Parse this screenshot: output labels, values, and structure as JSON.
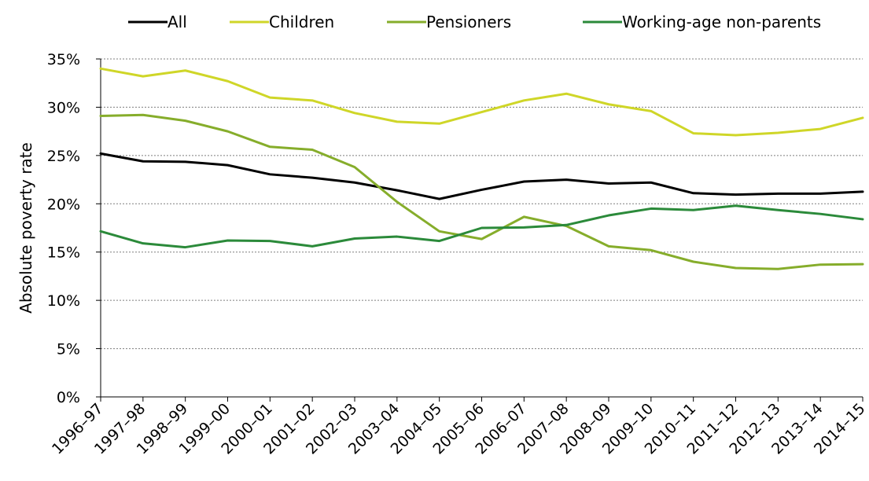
{
  "chart_data": {
    "type": "line",
    "title": "",
    "xlabel": "",
    "ylabel": "Absolute poverty rate",
    "ylim": [
      0,
      35
    ],
    "y_ticks": [
      "0%",
      "5%",
      "10%",
      "15%",
      "20%",
      "25%",
      "30%",
      "35%"
    ],
    "y_tick_values": [
      0,
      5,
      10,
      15,
      20,
      25,
      30,
      35
    ],
    "grid": true,
    "legend_position": "top",
    "categories": [
      "1996–97",
      "1997–98",
      "1998–99",
      "1999–00",
      "2000–01",
      "2001–02",
      "2002–03",
      "2003–04",
      "2004–05",
      "2005–06",
      "2006–07",
      "2007–08",
      "2008–09",
      "2009–10",
      "2010–11",
      "2011–12",
      "2012–13",
      "2013–14",
      "2014–15"
    ],
    "series": [
      {
        "name": "All",
        "color": "#000000",
        "values": [
          25.2,
          24.4,
          24.35,
          24.0,
          23.05,
          22.7,
          22.2,
          21.4,
          20.5,
          21.45,
          22.3,
          22.5,
          22.1,
          22.2,
          21.1,
          20.95,
          21.05,
          21.05,
          21.25
        ]
      },
      {
        "name": "Children",
        "color": "#cfd628",
        "values": [
          34.0,
          33.2,
          33.8,
          32.7,
          31.0,
          30.7,
          29.4,
          28.5,
          28.3,
          29.5,
          30.7,
          31.4,
          30.3,
          29.6,
          27.3,
          27.1,
          27.35,
          27.75,
          28.9
        ]
      },
      {
        "name": "Pensioners",
        "color": "#86ad2b",
        "values": [
          29.1,
          29.2,
          28.6,
          27.5,
          25.9,
          25.6,
          23.8,
          20.2,
          17.15,
          16.35,
          18.65,
          17.7,
          15.6,
          15.2,
          14.0,
          13.35,
          13.25,
          13.7,
          13.75
        ]
      },
      {
        "name": "Working-age non-parents",
        "color": "#2b8a3a",
        "values": [
          17.15,
          15.9,
          15.5,
          16.2,
          16.15,
          15.6,
          16.4,
          16.6,
          16.15,
          17.5,
          17.55,
          17.8,
          18.8,
          19.5,
          19.35,
          19.8,
          19.35,
          18.95,
          18.4
        ]
      }
    ]
  }
}
